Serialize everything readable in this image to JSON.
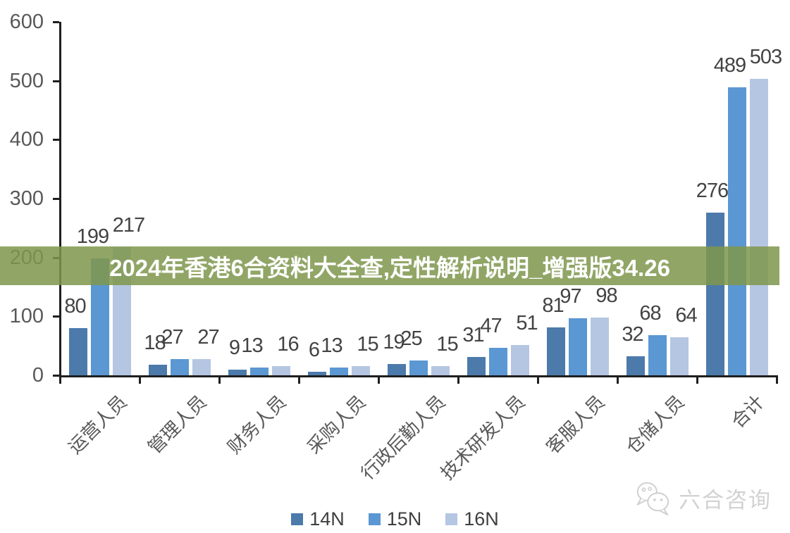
{
  "banner": {
    "text": "2024年香港6合资料大全查,定性解析说明_增强版34.26",
    "bg_rgba": "rgba(127,151,77,0.86)",
    "text_color": "#ffffff"
  },
  "watermark": {
    "text": "六合咨询",
    "color": "#d2d2d2",
    "icon": "chat-bubbles-icon"
  },
  "chart_data": {
    "type": "bar",
    "title": "",
    "xlabel": "",
    "ylabel": "",
    "categories": [
      "运营人员",
      "管理人员",
      "财务人员",
      "采购人员",
      "行政后勤人员",
      "技术研发人员",
      "客服人员",
      "仓储人员",
      "合计"
    ],
    "series": [
      {
        "name": "14N",
        "color": "#4c7aab",
        "values": [
          80,
          18,
          9,
          6,
          19,
          31,
          81,
          32,
          276
        ]
      },
      {
        "name": "15N",
        "color": "#5b97d2",
        "values": [
          199,
          27,
          13,
          13,
          25,
          47,
          97,
          68,
          489
        ]
      },
      {
        "name": "16N",
        "color": "#b5c6e3",
        "values": [
          217,
          27,
          16,
          15,
          15,
          51,
          98,
          64,
          503
        ]
      }
    ],
    "ylim": [
      0,
      600
    ],
    "yticks": [
      0,
      100,
      200,
      300,
      400,
      500,
      600
    ],
    "grid": false,
    "legend_position": "bottom",
    "bar_value_labels": true,
    "colors": {
      "axis": "#1f1f1f",
      "axis_label": "#595959",
      "value_label": "#434343",
      "category_label": "#595959"
    }
  }
}
